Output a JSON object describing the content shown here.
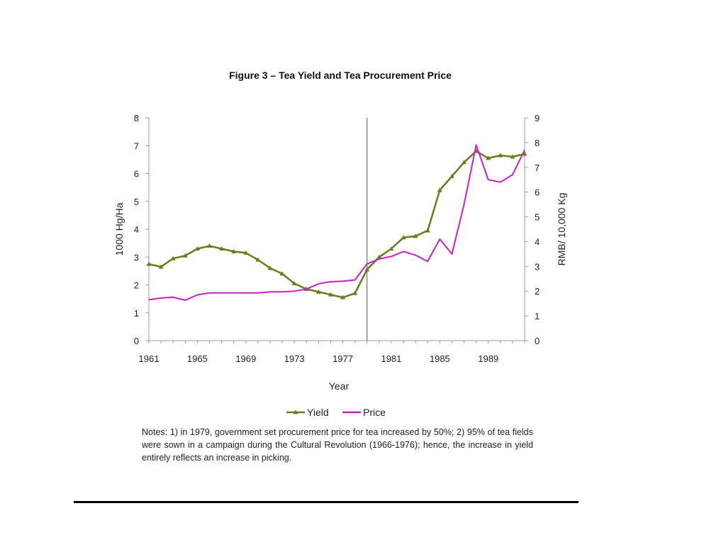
{
  "chart_data": {
    "type": "line",
    "title": "Figure 3 – Tea Yield and Tea Procurement Price",
    "xlabel": "Year",
    "ylabel_left": "1000 Hg/Ha",
    "ylabel_right": "RMB/ 10,000 Kg",
    "xlim": [
      1961,
      1992
    ],
    "ylim_left": [
      0,
      8
    ],
    "ylim_right": [
      0,
      9
    ],
    "x_ticks": [
      1961,
      1965,
      1969,
      1973,
      1977,
      1981,
      1985,
      1989
    ],
    "y_ticks_left": [
      0,
      1,
      2,
      3,
      4,
      5,
      6,
      7,
      8
    ],
    "y_ticks_right": [
      0,
      1,
      2,
      3,
      4,
      5,
      6,
      7,
      8,
      9
    ],
    "vertical_marker_year": 1979,
    "legend_position": "bottom",
    "grid": false,
    "series": [
      {
        "name": "Yield",
        "axis": "left",
        "color": "#6b7a1a",
        "marker": "triangle",
        "x": [
          1961,
          1962,
          1963,
          1964,
          1965,
          1966,
          1967,
          1968,
          1969,
          1970,
          1971,
          1972,
          1973,
          1974,
          1975,
          1976,
          1977,
          1978,
          1979,
          1980,
          1981,
          1982,
          1983,
          1984,
          1985,
          1986,
          1987,
          1988,
          1989,
          1990,
          1991,
          1992
        ],
        "values": [
          2.75,
          2.65,
          2.95,
          3.05,
          3.3,
          3.4,
          3.3,
          3.2,
          3.15,
          2.9,
          2.6,
          2.4,
          2.05,
          1.85,
          1.75,
          1.65,
          1.55,
          1.7,
          2.55,
          3.0,
          3.3,
          3.7,
          3.75,
          3.95,
          5.4,
          5.9,
          6.4,
          6.8,
          6.55,
          6.65,
          6.6,
          6.7
        ]
      },
      {
        "name": "Price",
        "axis": "right",
        "color": "#cc1fcc",
        "marker": "none",
        "x": [
          1961,
          1962,
          1963,
          1964,
          1965,
          1966,
          1967,
          1968,
          1969,
          1970,
          1971,
          1972,
          1973,
          1974,
          1975,
          1976,
          1977,
          1978,
          1979,
          1980,
          1981,
          1982,
          1983,
          1984,
          1985,
          1986,
          1987,
          1988,
          1989,
          1990,
          1991,
          1992
        ],
        "values": [
          1.65,
          1.72,
          1.75,
          1.63,
          1.85,
          1.93,
          1.93,
          1.93,
          1.93,
          1.93,
          1.97,
          1.97,
          2.0,
          2.08,
          2.3,
          2.38,
          2.4,
          2.45,
          3.1,
          3.3,
          3.4,
          3.6,
          3.45,
          3.2,
          4.1,
          3.5,
          5.5,
          7.9,
          6.5,
          6.4,
          6.7,
          7.7
        ]
      }
    ]
  },
  "notes": "Notes: 1) in 1979, government set procurement price for tea increased by 50%; 2) 95% of tea fields were sown in a campaign during the Cultural Revolution (1966-1976); hence, the increase in yield entirely reflects an increase in picking."
}
